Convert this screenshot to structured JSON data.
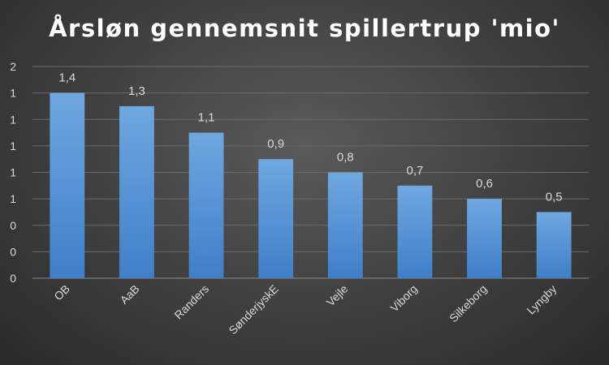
{
  "chart_data": {
    "type": "bar",
    "title": "Årsløn gennemsnit spillertrup 'mio'",
    "categories": [
      "OB",
      "AaB",
      "Randers",
      "SønderjyskE",
      "Vejle",
      "Viborg",
      "Silkeborg",
      "Lyngby"
    ],
    "values": [
      1.4,
      1.3,
      1.1,
      0.9,
      0.8,
      0.7,
      0.6,
      0.5
    ],
    "data_labels": [
      "1,4",
      "1,3",
      "1,1",
      "0,9",
      "0,8",
      "0,7",
      "0,6",
      "0,5"
    ],
    "y_ticks": [
      0,
      0.2,
      0.4,
      0.6,
      0.8,
      1.0,
      1.2,
      1.4,
      1.6
    ],
    "y_tick_labels": [
      "0",
      "0",
      "0",
      "1",
      "1",
      "1",
      "1",
      "1",
      "2"
    ],
    "ylim": [
      0,
      1.6
    ],
    "xlabel": "",
    "ylabel": "",
    "grid": true,
    "legend": "none",
    "bar_color_top": "#6fa7e0",
    "bar_color_bottom": "#3f7fc9",
    "background": "#3e3e3e"
  }
}
